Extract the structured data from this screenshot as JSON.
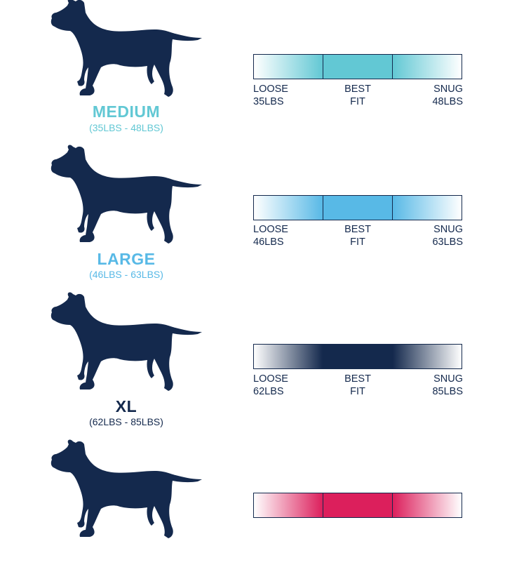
{
  "colors": {
    "dog": "#14294d",
    "outline": "#14294d"
  },
  "sizes": [
    {
      "name": "MEDIUM",
      "range": "(35LBS - 48LBS)",
      "color": "#62c8d4",
      "loose_label": "LOOSE",
      "loose_value": "35LBS",
      "best_label": "BEST",
      "best_value": "FIT",
      "snug_label": "SNUG",
      "snug_value": "48LBS"
    },
    {
      "name": "LARGE",
      "range": "(46LBS - 63LBS)",
      "color": "#58b9e6",
      "loose_label": "LOOSE",
      "loose_value": "46LBS",
      "best_label": "BEST",
      "best_value": "FIT",
      "snug_label": "SNUG",
      "snug_value": "63LBS"
    },
    {
      "name": "XL",
      "range": "(62LBS - 85LBS)",
      "color": "#14294d",
      "loose_label": "LOOSE",
      "loose_value": "62LBS",
      "best_label": "BEST",
      "best_value": "FIT",
      "snug_label": "SNUG",
      "snug_value": "85LBS"
    },
    {
      "name": "",
      "range": "",
      "color": "#dc1f5c"
    }
  ]
}
